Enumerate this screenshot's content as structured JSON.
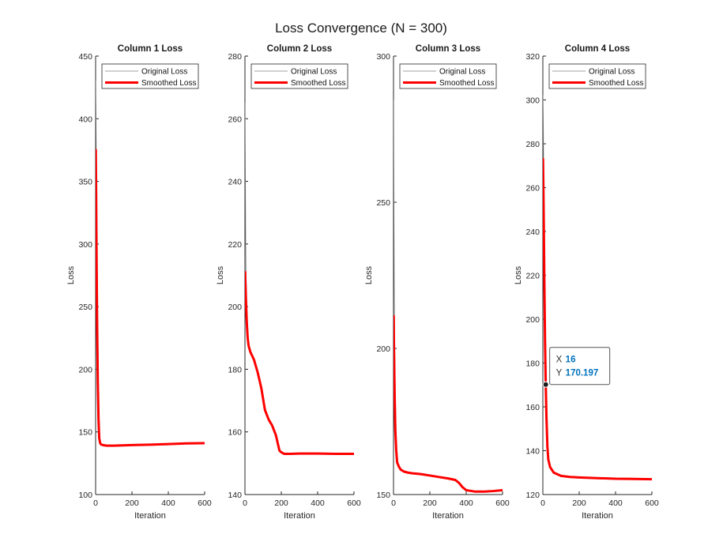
{
  "figure": {
    "title": "Loss Convergence (N = 300)"
  },
  "chart_data": [
    {
      "type": "line",
      "title": "Column 1 Loss",
      "xlabel": "Iteration",
      "ylabel": "Loss",
      "xlim": [
        0,
        600
      ],
      "ylim": [
        100,
        450
      ],
      "xticks": [
        0,
        200,
        400,
        600
      ],
      "yticks": [
        100,
        150,
        200,
        250,
        300,
        350,
        400,
        450
      ],
      "legend": {
        "position": "top",
        "entries": [
          "Original Loss",
          "Smoothed Loss"
        ]
      },
      "series": [
        {
          "name": "Original Loss",
          "color": "#808080",
          "x": [
            1,
            2,
            3,
            5,
            8,
            12,
            16,
            20,
            25,
            30,
            40,
            60,
            100,
            200,
            300,
            400,
            500,
            600
          ],
          "y": [
            430,
            410,
            385,
            340,
            290,
            220,
            180,
            150,
            141,
            140,
            139.5,
            139,
            139,
            139.5,
            139.8,
            140.3,
            140.8,
            141
          ]
        },
        {
          "name": "Smoothed Loss",
          "color": "#ff0000",
          "x": [
            1,
            3,
            5,
            8,
            12,
            16,
            20,
            25,
            30,
            40,
            60,
            100,
            200,
            300,
            400,
            500,
            600
          ],
          "y": [
            375,
            340,
            295,
            240,
            190,
            160,
            145,
            141,
            140,
            139.5,
            139,
            139,
            139.5,
            139.8,
            140.3,
            140.8,
            141
          ]
        }
      ]
    },
    {
      "type": "line",
      "title": "Column 2 Loss",
      "xlabel": "Iteration",
      "ylabel": "Loss",
      "xlim": [
        0,
        600
      ],
      "ylim": [
        140,
        280
      ],
      "xticks": [
        0,
        200,
        400,
        600
      ],
      "yticks": [
        140,
        160,
        180,
        200,
        220,
        240,
        260,
        280
      ],
      "legend": {
        "position": "top",
        "entries": [
          "Original Loss",
          "Smoothed Loss"
        ]
      },
      "series": [
        {
          "name": "Original Loss",
          "color": "#808080",
          "x": [
            1,
            2,
            3,
            4,
            6,
            10,
            15,
            20
          ],
          "y": [
            265,
            250,
            235,
            222,
            210,
            200,
            192,
            188
          ]
        },
        {
          "name": "Smoothed Loss",
          "color": "#ff0000",
          "x": [
            1,
            5,
            10,
            15,
            20,
            30,
            50,
            70,
            90,
            110,
            130,
            150,
            170,
            190,
            200,
            215,
            230,
            250,
            300,
            400,
            500,
            600
          ],
          "y": [
            211,
            203,
            195,
            190,
            187.5,
            185.5,
            183,
            179,
            174,
            167,
            164,
            162,
            159,
            154,
            153.5,
            153,
            153,
            153,
            153.1,
            153.1,
            153,
            153
          ]
        }
      ]
    },
    {
      "type": "line",
      "title": "Column 3 Loss",
      "xlabel": "Iteration",
      "ylabel": "Loss",
      "xlim": [
        0,
        600
      ],
      "ylim": [
        150,
        300
      ],
      "xticks": [
        0,
        200,
        400,
        600
      ],
      "yticks": [
        150,
        200,
        250,
        300
      ],
      "legend": {
        "position": "top",
        "entries": [
          "Original Loss",
          "Smoothed Loss"
        ]
      },
      "series": [
        {
          "name": "Original Loss",
          "color": "#808080",
          "x": [
            1,
            2,
            3,
            4,
            6,
            10,
            15,
            20
          ],
          "y": [
            285,
            262,
            240,
            222,
            205,
            185,
            170,
            162
          ]
        },
        {
          "name": "Smoothed Loss",
          "color": "#ff0000",
          "x": [
            1,
            3,
            6,
            10,
            15,
            20,
            30,
            40,
            60,
            80,
            100,
            150,
            200,
            250,
            300,
            340,
            360,
            380,
            400,
            450,
            500,
            550,
            600
          ],
          "y": [
            211,
            198,
            185,
            172,
            165,
            161,
            159.5,
            158.5,
            157.8,
            157.5,
            157.3,
            157,
            156.5,
            156,
            155.5,
            155,
            154,
            152.5,
            151.5,
            151,
            151,
            151.2,
            151.5
          ]
        }
      ]
    },
    {
      "type": "line",
      "title": "Column 4 Loss",
      "xlabel": "Iteration",
      "ylabel": "Loss",
      "xlim": [
        0,
        600
      ],
      "ylim": [
        120,
        320
      ],
      "xticks": [
        0,
        200,
        400,
        600
      ],
      "yticks": [
        120,
        140,
        160,
        180,
        200,
        220,
        240,
        260,
        280,
        300,
        320
      ],
      "legend": {
        "position": "top",
        "entries": [
          "Original Loss",
          "Smoothed Loss"
        ]
      },
      "series": [
        {
          "name": "Original Loss",
          "color": "#808080",
          "x": [
            1,
            2,
            3,
            5,
            8,
            12,
            16,
            20
          ],
          "y": [
            302,
            295,
            285,
            265,
            235,
            200,
            175,
            160
          ]
        },
        {
          "name": "Smoothed Loss",
          "color": "#ff0000",
          "x": [
            1,
            3,
            5,
            8,
            12,
            16,
            20,
            25,
            30,
            40,
            60,
            100,
            150,
            200,
            300,
            400,
            500,
            600
          ],
          "y": [
            273,
            260,
            245,
            220,
            190,
            170.197,
            155,
            142,
            136,
            132.5,
            130,
            128.5,
            128,
            127.8,
            127.5,
            127.2,
            127.1,
            127
          ]
        }
      ],
      "datatip": {
        "x_key": "X",
        "x_value": "16",
        "y_key": "Y",
        "y_value": "170.197",
        "x": 16,
        "y": 170.197
      }
    }
  ]
}
